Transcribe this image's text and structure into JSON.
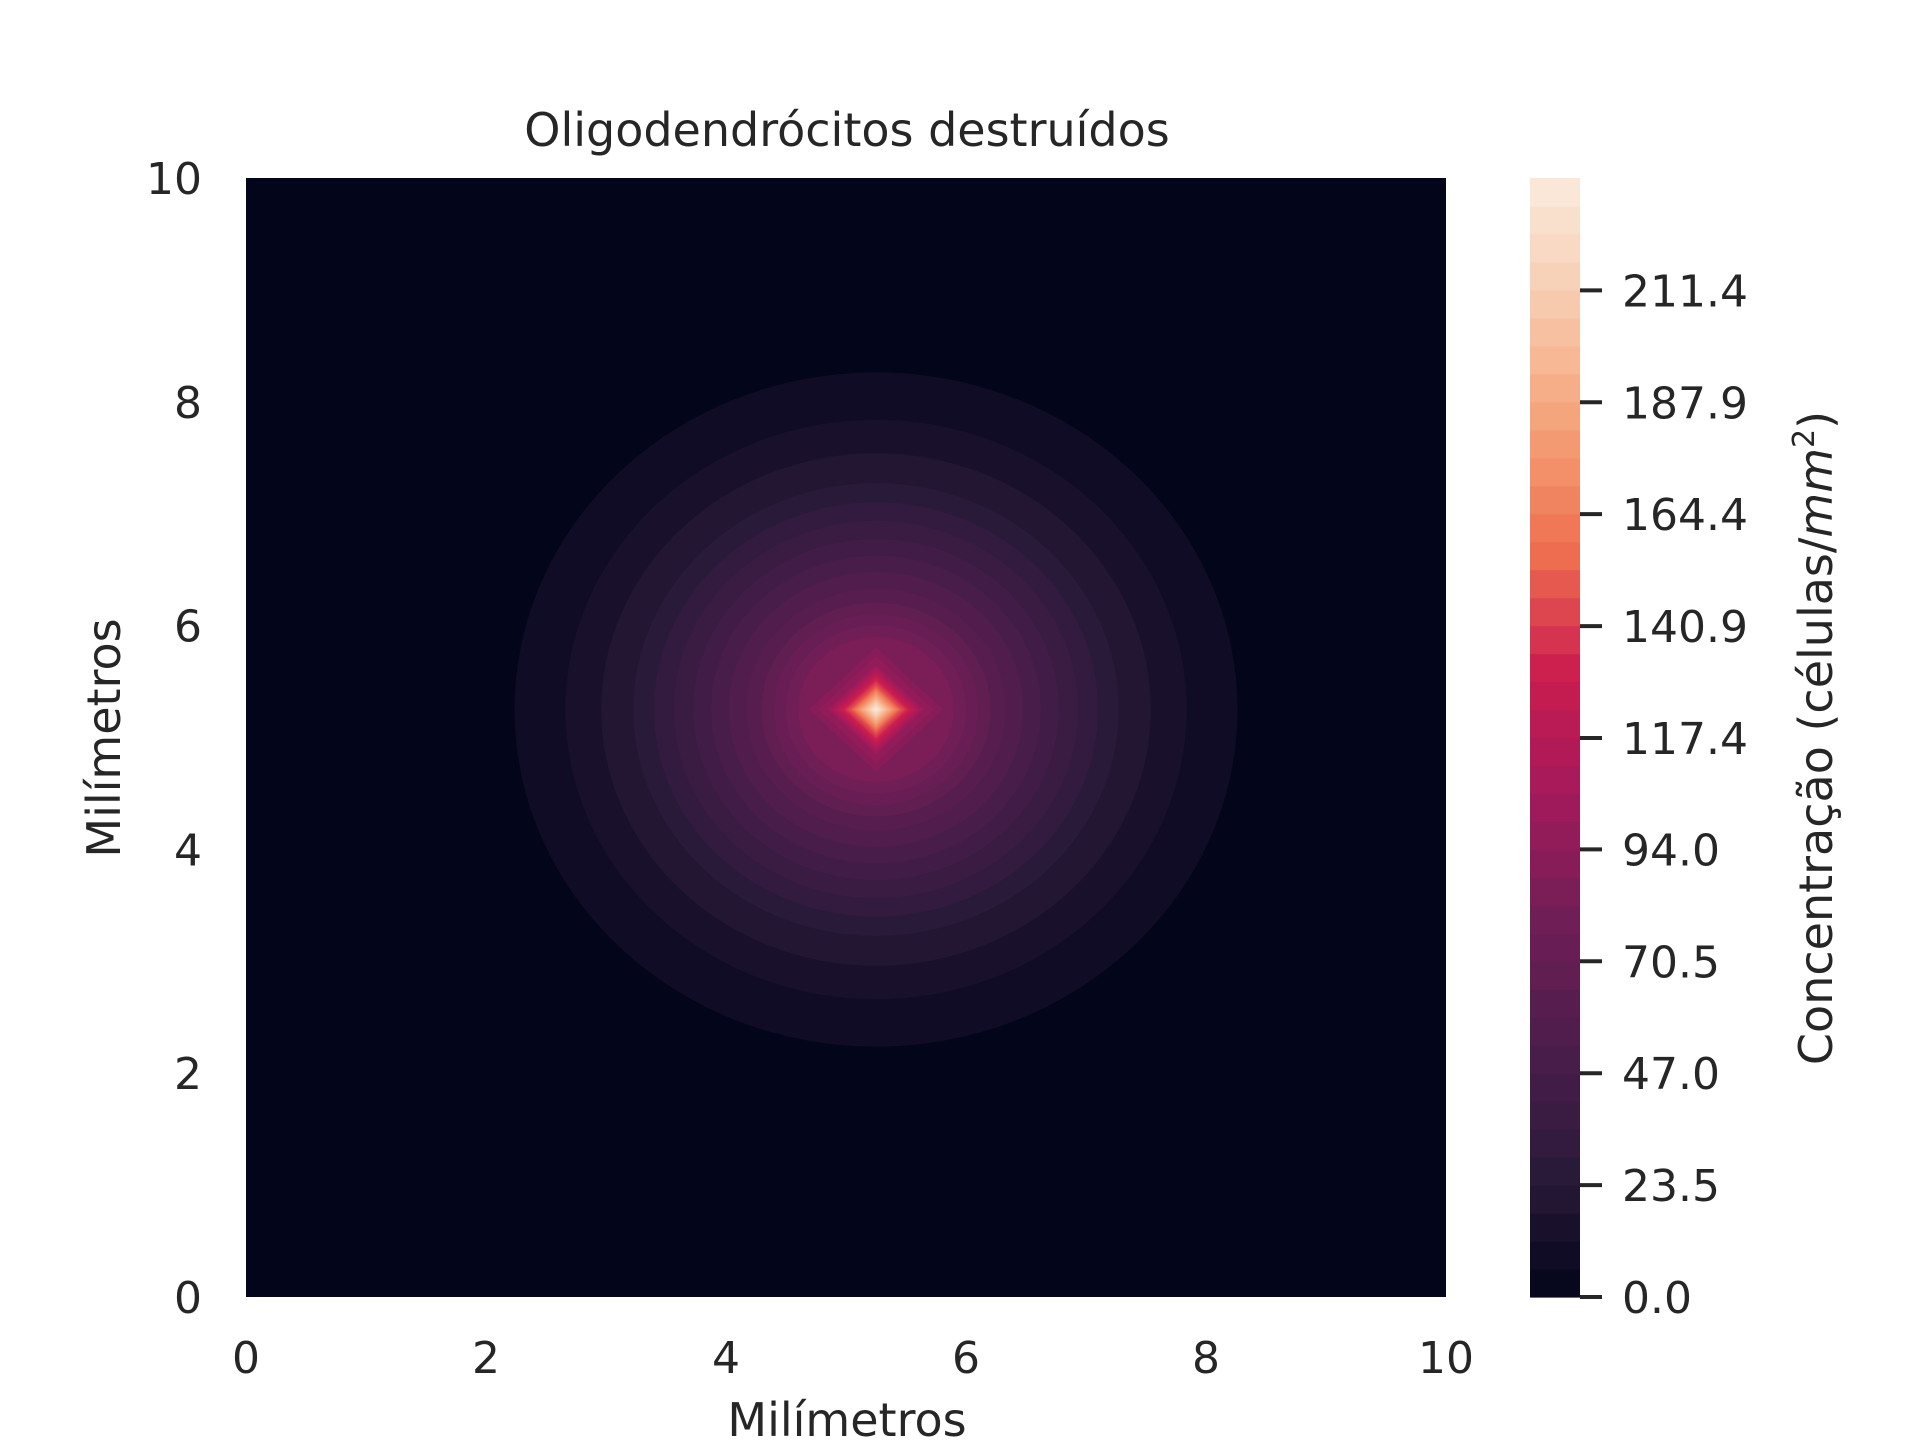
{
  "chart_data": {
    "type": "heatmap",
    "subtype": "filled-contour",
    "title": "Oligodendrócitos destruídos",
    "xlabel": "Milímetros",
    "ylabel": "Milímetros",
    "xlim": [
      0,
      10
    ],
    "ylim": [
      0,
      10
    ],
    "x_ticks": [
      "0",
      "2",
      "4",
      "6",
      "8",
      "10"
    ],
    "y_ticks": [
      "0",
      "2",
      "4",
      "6",
      "8",
      "10"
    ],
    "grid": false,
    "colormap": "rocket",
    "colorbar": {
      "label": "Concentração (células/mm²)",
      "label_prefix": "Concentração (células/",
      "label_math": "mm",
      "label_sup": "2",
      "label_suffix": ")",
      "range": [
        0,
        235
      ],
      "levels": 40,
      "ticks": [
        {
          "value": 0.0,
          "label": "0.0"
        },
        {
          "value": 23.5,
          "label": "23.5"
        },
        {
          "value": 47.0,
          "label": "47.0"
        },
        {
          "value": 70.5,
          "label": "70.5"
        },
        {
          "value": 94.0,
          "label": "94.0"
        },
        {
          "value": 117.4,
          "label": "117.4"
        },
        {
          "value": 140.9,
          "label": "140.9"
        },
        {
          "value": 164.4,
          "label": "164.4"
        },
        {
          "value": 187.9,
          "label": "187.9"
        },
        {
          "value": 211.4,
          "label": "211.4"
        }
      ]
    },
    "field": {
      "description": "radially symmetric concentration peak",
      "peak_center": [
        5.25,
        5.25
      ],
      "peak_value": 235,
      "background_value": 0,
      "radial_profile": [
        {
          "r": 0.0,
          "value": 235
        },
        {
          "r": 0.2,
          "value": 150
        },
        {
          "r": 0.4,
          "value": 100
        },
        {
          "r": 0.6,
          "value": 85
        },
        {
          "r": 1.0,
          "value": 62
        },
        {
          "r": 1.5,
          "value": 42
        },
        {
          "r": 2.0,
          "value": 24
        },
        {
          "r": 2.5,
          "value": 13
        },
        {
          "r": 3.0,
          "value": 6
        },
        {
          "r": 3.5,
          "value": 1
        },
        {
          "r": 3.8,
          "value": 0
        },
        {
          "r": 10.0,
          "value": 0
        }
      ]
    },
    "colors": {
      "rocket_stops": [
        "#03051a",
        "#2a1a3a",
        "#4c1d4b",
        "#6e1e56",
        "#a11a5b",
        "#cb1b4f",
        "#ef6f4f",
        "#f5a177",
        "#f8cbae",
        "#faebdd"
      ]
    }
  }
}
